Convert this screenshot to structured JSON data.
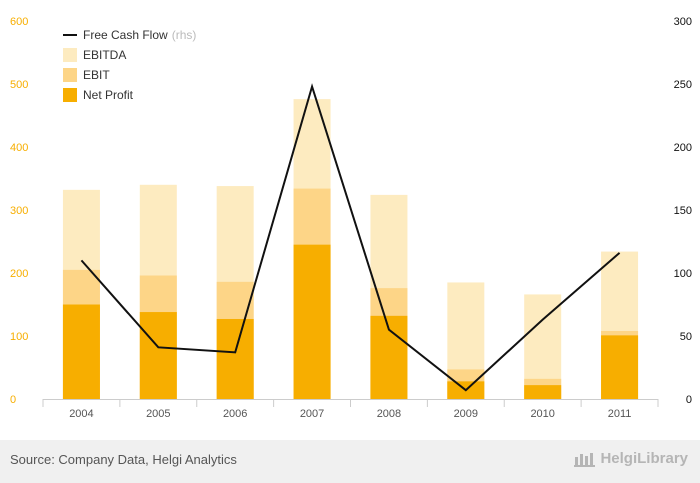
{
  "chart_data": {
    "type": "bar",
    "categories": [
      "2004",
      "2005",
      "2006",
      "2007",
      "2008",
      "2009",
      "2010",
      "2011"
    ],
    "series": [
      {
        "name": "EBITDA",
        "kind": "bar",
        "axis": "left",
        "color": "#fdebc0",
        "values": [
          332,
          340,
          338,
          476,
          324,
          185,
          166,
          234
        ]
      },
      {
        "name": "EBIT",
        "kind": "bar",
        "axis": "left",
        "color": "#fdd587",
        "values": [
          205,
          196,
          186,
          334,
          176,
          47,
          32,
          108
        ]
      },
      {
        "name": "Net Profit",
        "kind": "bar",
        "axis": "left",
        "color": "#f7ae00",
        "values": [
          150,
          138,
          127,
          245,
          132,
          28,
          22,
          101
        ]
      },
      {
        "name": "Free Cash Flow",
        "kind": "line",
        "axis": "right",
        "color": "#111111",
        "values": [
          110,
          41,
          37,
          248,
          55,
          7,
          63,
          116
        ]
      }
    ],
    "legend": [
      {
        "label": "Free Cash Flow",
        "suffix": "(rhs)",
        "marker": "line",
        "color": "#111111"
      },
      {
        "label": "EBITDA",
        "marker": "box",
        "color": "#fdebc0"
      },
      {
        "label": "EBIT",
        "marker": "box",
        "color": "#fdd587"
      },
      {
        "label": "Net Profit",
        "marker": "box",
        "color": "#f7ae00"
      }
    ],
    "y_left": {
      "min": 0,
      "max": 600,
      "ticks": [
        "0",
        "100",
        "200",
        "300",
        "400",
        "500",
        "600"
      ],
      "color": "#f7ae00"
    },
    "y_right": {
      "min": 0,
      "max": 300,
      "ticks": [
        "0",
        "50",
        "100",
        "150",
        "200",
        "250",
        "300"
      ],
      "color": "#111111"
    },
    "legend_position": "top-left",
    "grid": false
  },
  "footer": {
    "source": "Source: Company Data, Helgi Analytics",
    "brand": "HelgiLibrary"
  }
}
